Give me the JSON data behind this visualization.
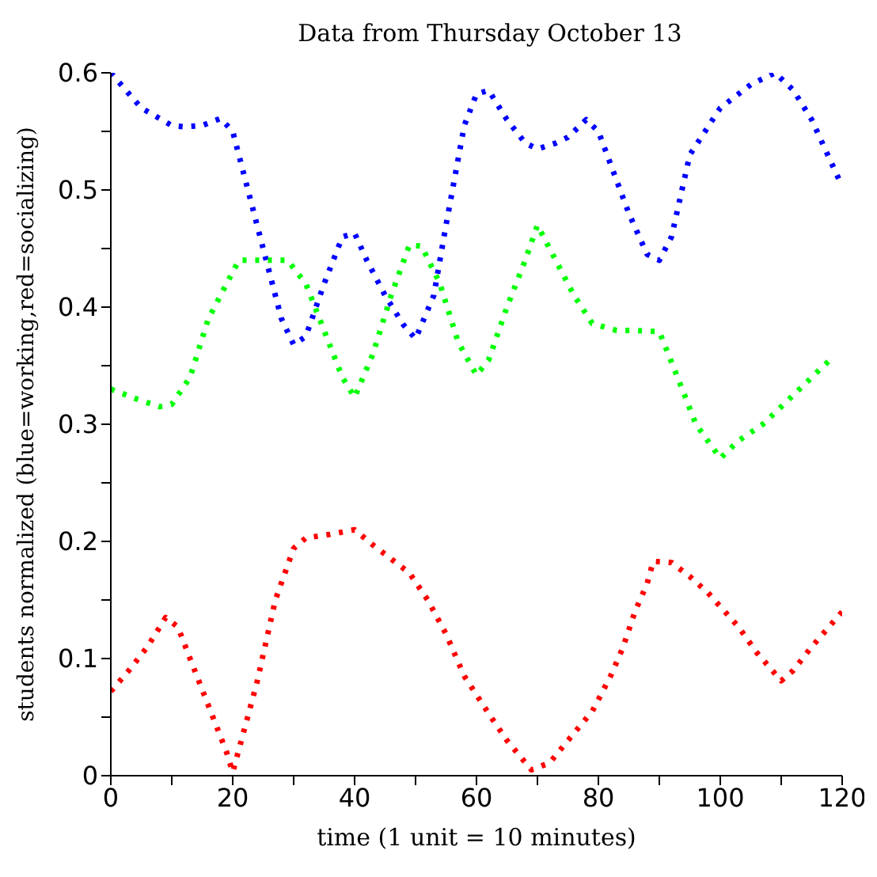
{
  "chart_data": {
    "type": "line",
    "title": "Data from Thursday October 13",
    "xlabel": "time (1 unit = 10 minutes)",
    "ylabel": "students normalized (blue=working,red=socializing)",
    "xlim": [
      0,
      120
    ],
    "xticks": [
      0,
      {
        "value": 10,
        "label": null
      },
      20,
      {
        "value": 30,
        "label": null
      },
      40,
      {
        "value": 50,
        "label": null
      },
      60,
      {
        "value": 70,
        "label": null
      },
      80,
      {
        "value": 90,
        "label": null
      },
      100,
      {
        "value": 110,
        "label": null
      },
      120
    ],
    "ylim": [
      0,
      0.6
    ],
    "yticks": [
      0,
      {
        "value": 0.05,
        "label": null
      },
      0.1,
      {
        "value": 0.15,
        "label": null
      },
      0.2,
      {
        "value": 0.25,
        "label": null
      },
      0.3,
      {
        "value": 0.35,
        "label": null
      },
      0.4,
      {
        "value": 0.45,
        "label": null
      },
      0.5,
      {
        "value": 0.55,
        "label": null
      },
      0.6
    ],
    "marker": "none",
    "line_style": "dotted",
    "series": [
      {
        "color": "#0000ff",
        "x": [
          0,
          5,
          10,
          12,
          15,
          18,
          20,
          25,
          28,
          30,
          32,
          35,
          38,
          40,
          42,
          45,
          48,
          50,
          53,
          55,
          58,
          60,
          62,
          65,
          68,
          70,
          73,
          75,
          78,
          80,
          85,
          88,
          90,
          92,
          95,
          100,
          105,
          109,
          112,
          115,
          120
        ],
        "values": [
          0.6,
          0.57,
          0.555,
          0.554,
          0.555,
          0.561,
          0.55,
          0.45,
          0.39,
          0.368,
          0.375,
          0.42,
          0.46,
          0.463,
          0.44,
          0.41,
          0.385,
          0.373,
          0.41,
          0.47,
          0.555,
          0.582,
          0.585,
          0.56,
          0.54,
          0.535,
          0.54,
          0.545,
          0.56,
          0.55,
          0.48,
          0.445,
          0.44,
          0.46,
          0.53,
          0.57,
          0.59,
          0.6,
          0.585,
          0.56,
          0.503
        ]
      },
      {
        "color": "#00ff00",
        "x": [
          0,
          4,
          8,
          10,
          13,
          16,
          21,
          25,
          29,
          32,
          35,
          38,
          40,
          43,
          46,
          49,
          51,
          54,
          57,
          60,
          62,
          65,
          68,
          70,
          73,
          76,
          79,
          83,
          86,
          90,
          93,
          96,
          100,
          103,
          107,
          111,
          115,
          118
        ],
        "values": [
          0.33,
          0.322,
          0.315,
          0.317,
          0.34,
          0.39,
          0.44,
          0.44,
          0.44,
          0.42,
          0.38,
          0.34,
          0.323,
          0.36,
          0.41,
          0.453,
          0.452,
          0.42,
          0.37,
          0.342,
          0.355,
          0.4,
          0.44,
          0.47,
          0.44,
          0.41,
          0.386,
          0.38,
          0.38,
          0.379,
          0.34,
          0.3,
          0.271,
          0.286,
          0.3,
          0.32,
          0.34,
          0.355
        ]
      },
      {
        "color": "#ff0000",
        "x": [
          0,
          3,
          6,
          9,
          11,
          13,
          16,
          19,
          20,
          21,
          24,
          27,
          30,
          32,
          36,
          40,
          43,
          46,
          49,
          52,
          55,
          58,
          60,
          62,
          65,
          69,
          72,
          75,
          79,
          82,
          84,
          86,
          88,
          89,
          92,
          95,
          98,
          103,
          106,
          110,
          112,
          115,
          120
        ],
        "values": [
          0.072,
          0.09,
          0.11,
          0.135,
          0.127,
          0.1,
          0.06,
          0.02,
          0.003,
          0.022,
          0.08,
          0.15,
          0.194,
          0.203,
          0.206,
          0.21,
          0.197,
          0.185,
          0.173,
          0.15,
          0.121,
          0.085,
          0.069,
          0.053,
          0.03,
          0.005,
          0.011,
          0.03,
          0.055,
          0.085,
          0.109,
          0.14,
          0.164,
          0.183,
          0.182,
          0.17,
          0.156,
          0.127,
          0.105,
          0.081,
          0.09,
          0.11,
          0.14
        ]
      }
    ]
  }
}
